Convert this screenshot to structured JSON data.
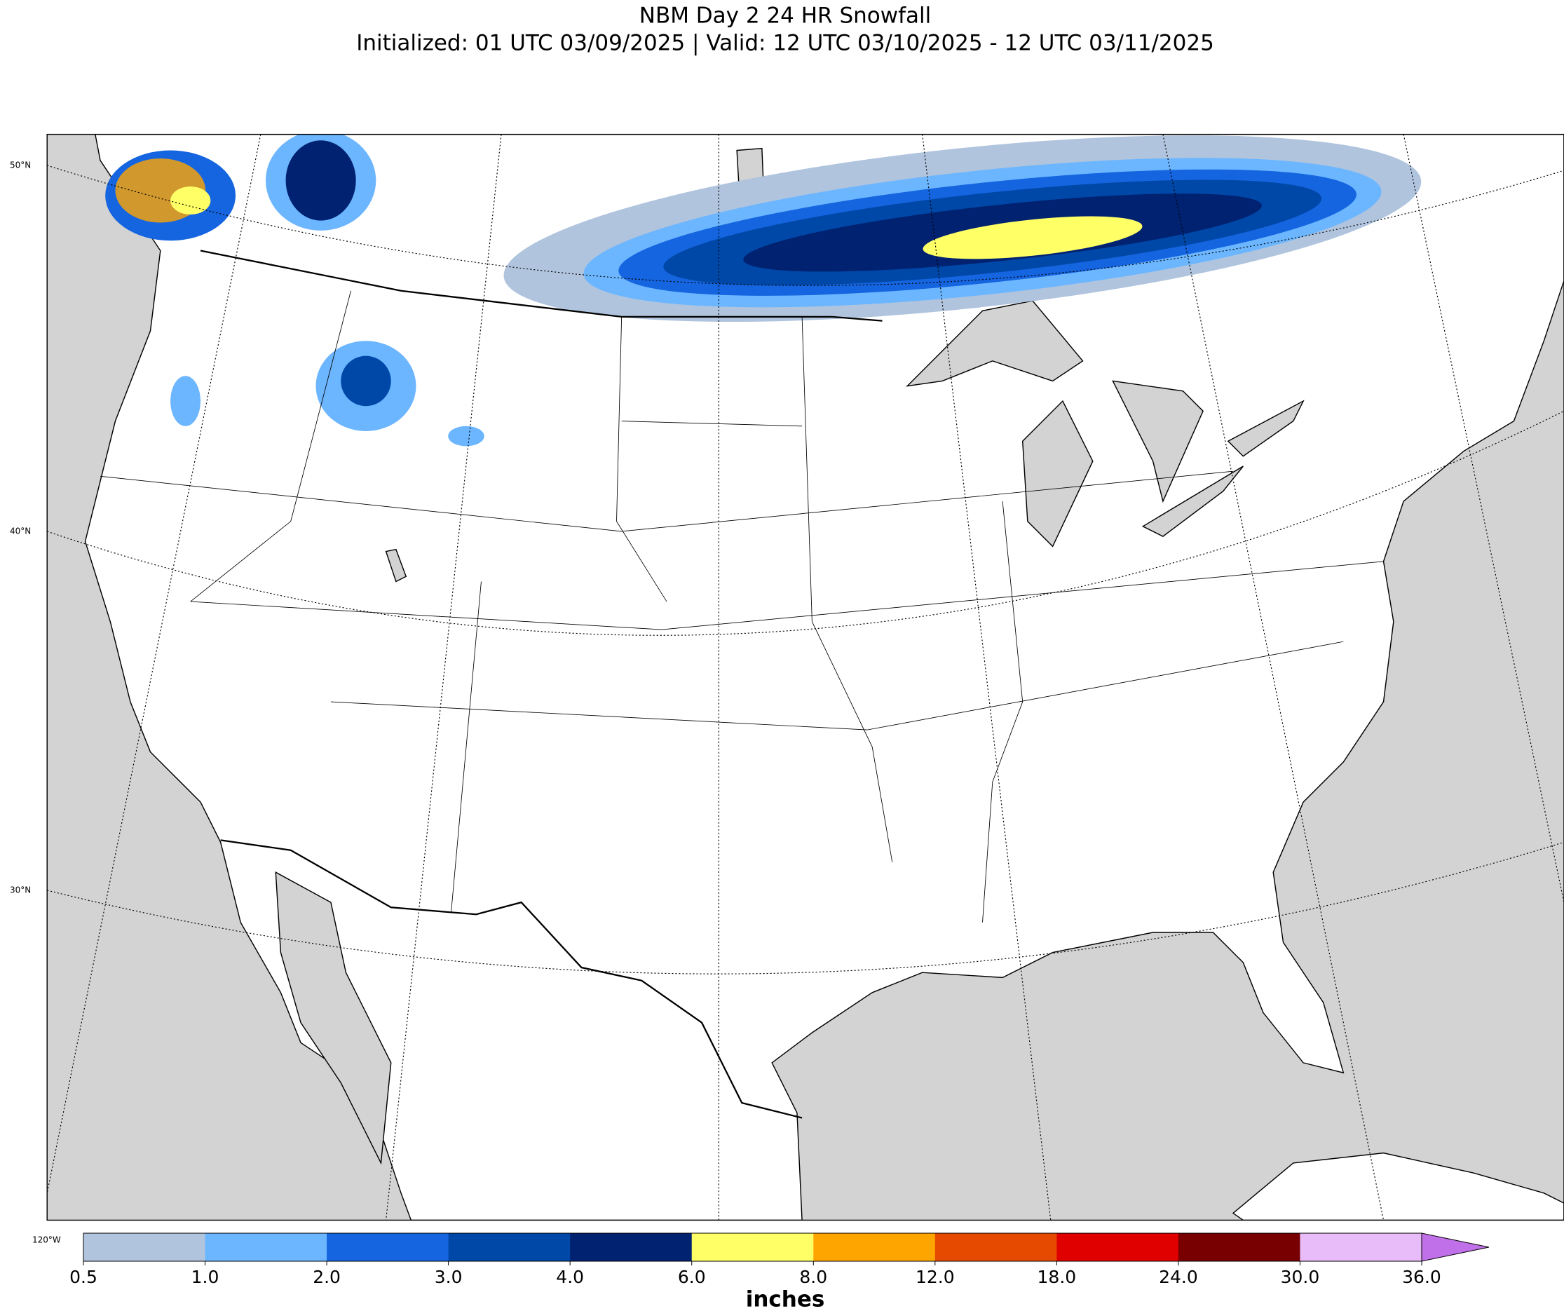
{
  "title": [
    "NBM Day 2 24 HR Snowfall",
    "Initialized: 01 UTC 03/09/2025 | Valid: 12 UTC 03/10/2025 - 12 UTC 03/11/2025"
  ],
  "map": {
    "lat_labels": [
      "50°N",
      "40°N",
      "30°N"
    ],
    "lon_label": "120°W"
  },
  "colorbar": {
    "label": "inches",
    "colors": [
      "#b0c4de",
      "#6cb6ff",
      "#1565e0",
      "#0048a8",
      "#002270",
      "#ffff66",
      "#ffa500",
      "#e64a00",
      "#e00000",
      "#780000",
      "#e8bcf8"
    ],
    "extend_color": "#c070e8",
    "ticks": [
      0.5,
      {
        "value": 1,
        "label": "1.0"
      },
      {
        "value": 2,
        "label": "2.0"
      },
      {
        "value": 3,
        "label": "3.0"
      },
      {
        "value": 4,
        "label": "4.0"
      },
      {
        "value": 6,
        "label": "6.0"
      },
      {
        "value": 8,
        "label": "8.0"
      },
      {
        "value": 12,
        "label": "12.0"
      },
      {
        "value": 18,
        "label": "18.0"
      },
      {
        "value": 24,
        "label": "24.0"
      },
      {
        "value": 30,
        "label": "30.0"
      },
      {
        "value": 36,
        "label": "36.0"
      }
    ]
  }
}
